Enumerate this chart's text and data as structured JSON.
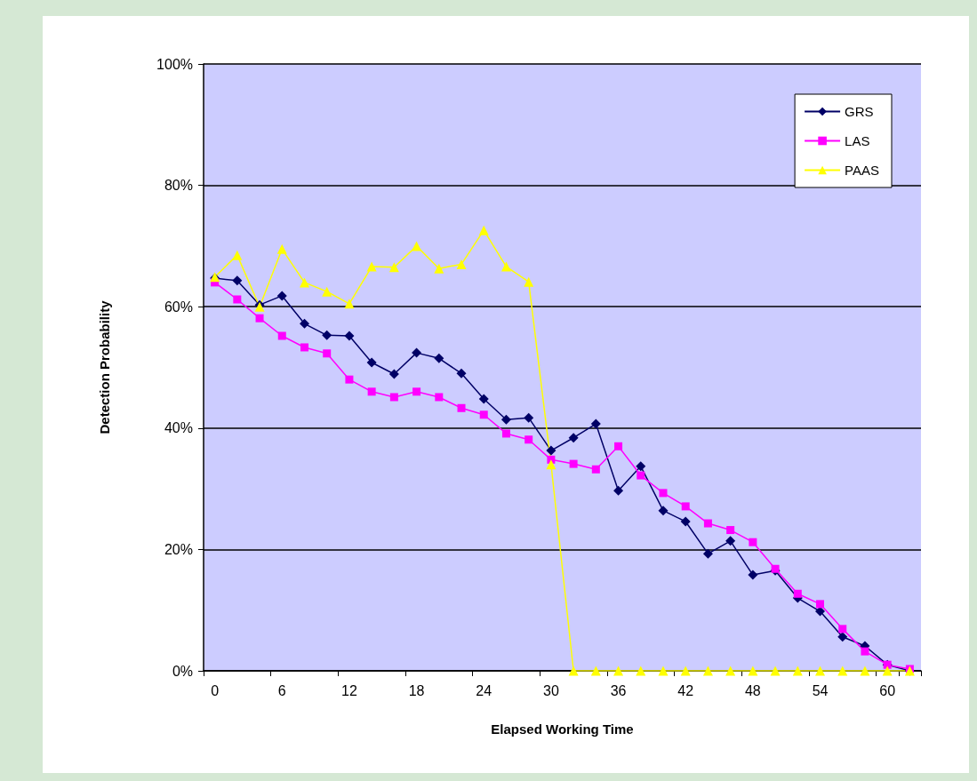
{
  "chart_data": {
    "type": "line",
    "xlabel": "Elapsed Working Time",
    "ylabel": "Detection Probability",
    "categories": [
      "0",
      null,
      null,
      "6",
      null,
      null,
      "12",
      null,
      null,
      "18",
      null,
      null,
      "24",
      null,
      null,
      "30",
      null,
      null,
      "36",
      null,
      null,
      "42",
      null,
      null,
      "48",
      null,
      null,
      "54",
      null,
      null,
      "60",
      null
    ],
    "series": [
      {
        "name": "GRS",
        "color": "#000066",
        "marker": "diamond",
        "values": [
          64.7,
          64.3,
          60.3,
          61.8,
          57.2,
          55.3,
          55.2,
          50.8,
          48.9,
          52.4,
          51.5,
          49.0,
          44.8,
          41.4,
          41.7,
          36.3,
          38.4,
          40.7,
          29.7,
          33.7,
          26.4,
          24.6,
          19.3,
          21.4,
          15.8,
          16.5,
          12.0,
          9.8,
          5.6,
          4.1,
          1.0,
          0
        ]
      },
      {
        "name": "LAS",
        "color": "#ff00ff",
        "marker": "square",
        "values": [
          64,
          61.2,
          58.1,
          55.2,
          53.3,
          52.3,
          48.0,
          46.0,
          45.1,
          46.0,
          45.1,
          43.3,
          42.2,
          39.1,
          38.1,
          34.8,
          34.1,
          33.2,
          37.0,
          32.2,
          29.3,
          27.1,
          24.3,
          23.2,
          21.2,
          16.8,
          12.7,
          11.0,
          6.9,
          3.2,
          1.0,
          0.3
        ]
      },
      {
        "name": "PAAS",
        "color": "#ffff00",
        "marker": "triangle",
        "values": [
          64.9,
          68.5,
          60.0,
          69.5,
          64.0,
          62.5,
          60.5,
          66.6,
          66.5,
          70.0,
          66.3,
          67.0,
          72.6,
          66.6,
          64.1,
          34.0,
          0,
          0,
          0,
          0,
          0,
          0,
          0,
          0,
          0,
          0,
          0,
          0,
          0,
          0,
          0,
          0
        ]
      }
    ],
    "ylim": [
      0,
      100
    ],
    "yticks": [
      {
        "value": 0,
        "label": "0%"
      },
      {
        "value": 20,
        "label": "20%"
      },
      {
        "value": 40,
        "label": "40%"
      },
      {
        "value": 60,
        "label": "60%"
      },
      {
        "value": 80,
        "label": "80%"
      },
      {
        "value": 100,
        "label": "100%"
      }
    ],
    "grid": "y",
    "legend": "top right"
  }
}
